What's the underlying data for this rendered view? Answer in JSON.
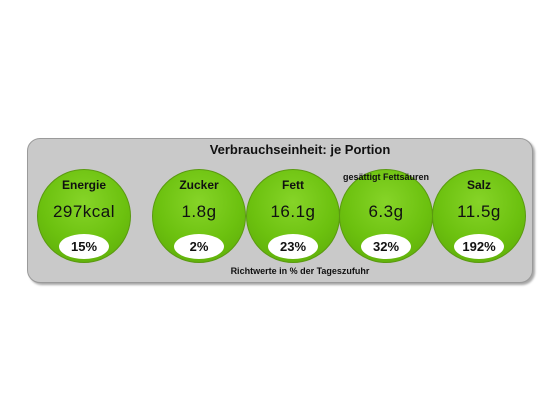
{
  "heading": "Verbrauchseinheit: je Portion",
  "footnote": "Richtwerte in % der Tageszufuhr",
  "colors": {
    "circle": "#6cc10f",
    "panel": "#c9c9c9"
  },
  "nutrients": [
    {
      "label": "Energie",
      "value": "297kcal",
      "percent": "15%"
    },
    {
      "label": "Zucker",
      "value": "1.8g",
      "percent": "2%"
    },
    {
      "label": "Fett",
      "value": "16.1g",
      "percent": "23%"
    },
    {
      "label": "gesättigt Fettsäuren",
      "value": "6.3g",
      "percent": "32%"
    },
    {
      "label": "Salz",
      "value": "11.5g",
      "percent": "192%"
    }
  ]
}
